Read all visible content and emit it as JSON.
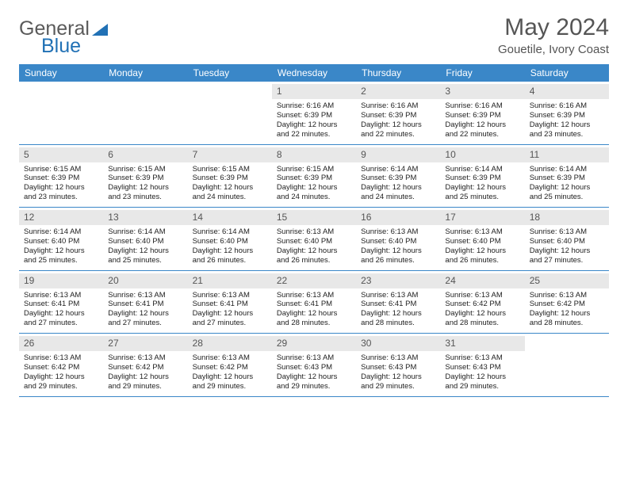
{
  "logo": {
    "text1": "General",
    "text2": "Blue"
  },
  "title": "May 2024",
  "location": "Gouetile, Ivory Coast",
  "colors": {
    "header_bg": "#3a87c8",
    "header_fg": "#ffffff",
    "daynum_bg": "#e8e8e8",
    "daynum_fg": "#555555",
    "rule": "#3a87c8",
    "text": "#222222",
    "logo_gray": "#5a5a5a",
    "logo_blue": "#2171b5"
  },
  "columns": [
    "Sunday",
    "Monday",
    "Tuesday",
    "Wednesday",
    "Thursday",
    "Friday",
    "Saturday"
  ],
  "weeks": [
    [
      {
        "n": "",
        "sr": "",
        "ss": "",
        "dl": ""
      },
      {
        "n": "",
        "sr": "",
        "ss": "",
        "dl": ""
      },
      {
        "n": "",
        "sr": "",
        "ss": "",
        "dl": ""
      },
      {
        "n": "1",
        "sr": "6:16 AM",
        "ss": "6:39 PM",
        "dl": "12 hours and 22 minutes."
      },
      {
        "n": "2",
        "sr": "6:16 AM",
        "ss": "6:39 PM",
        "dl": "12 hours and 22 minutes."
      },
      {
        "n": "3",
        "sr": "6:16 AM",
        "ss": "6:39 PM",
        "dl": "12 hours and 22 minutes."
      },
      {
        "n": "4",
        "sr": "6:16 AM",
        "ss": "6:39 PM",
        "dl": "12 hours and 23 minutes."
      }
    ],
    [
      {
        "n": "5",
        "sr": "6:15 AM",
        "ss": "6:39 PM",
        "dl": "12 hours and 23 minutes."
      },
      {
        "n": "6",
        "sr": "6:15 AM",
        "ss": "6:39 PM",
        "dl": "12 hours and 23 minutes."
      },
      {
        "n": "7",
        "sr": "6:15 AM",
        "ss": "6:39 PM",
        "dl": "12 hours and 24 minutes."
      },
      {
        "n": "8",
        "sr": "6:15 AM",
        "ss": "6:39 PM",
        "dl": "12 hours and 24 minutes."
      },
      {
        "n": "9",
        "sr": "6:14 AM",
        "ss": "6:39 PM",
        "dl": "12 hours and 24 minutes."
      },
      {
        "n": "10",
        "sr": "6:14 AM",
        "ss": "6:39 PM",
        "dl": "12 hours and 25 minutes."
      },
      {
        "n": "11",
        "sr": "6:14 AM",
        "ss": "6:39 PM",
        "dl": "12 hours and 25 minutes."
      }
    ],
    [
      {
        "n": "12",
        "sr": "6:14 AM",
        "ss": "6:40 PM",
        "dl": "12 hours and 25 minutes."
      },
      {
        "n": "13",
        "sr": "6:14 AM",
        "ss": "6:40 PM",
        "dl": "12 hours and 25 minutes."
      },
      {
        "n": "14",
        "sr": "6:14 AM",
        "ss": "6:40 PM",
        "dl": "12 hours and 26 minutes."
      },
      {
        "n": "15",
        "sr": "6:13 AM",
        "ss": "6:40 PM",
        "dl": "12 hours and 26 minutes."
      },
      {
        "n": "16",
        "sr": "6:13 AM",
        "ss": "6:40 PM",
        "dl": "12 hours and 26 minutes."
      },
      {
        "n": "17",
        "sr": "6:13 AM",
        "ss": "6:40 PM",
        "dl": "12 hours and 26 minutes."
      },
      {
        "n": "18",
        "sr": "6:13 AM",
        "ss": "6:40 PM",
        "dl": "12 hours and 27 minutes."
      }
    ],
    [
      {
        "n": "19",
        "sr": "6:13 AM",
        "ss": "6:41 PM",
        "dl": "12 hours and 27 minutes."
      },
      {
        "n": "20",
        "sr": "6:13 AM",
        "ss": "6:41 PM",
        "dl": "12 hours and 27 minutes."
      },
      {
        "n": "21",
        "sr": "6:13 AM",
        "ss": "6:41 PM",
        "dl": "12 hours and 27 minutes."
      },
      {
        "n": "22",
        "sr": "6:13 AM",
        "ss": "6:41 PM",
        "dl": "12 hours and 28 minutes."
      },
      {
        "n": "23",
        "sr": "6:13 AM",
        "ss": "6:41 PM",
        "dl": "12 hours and 28 minutes."
      },
      {
        "n": "24",
        "sr": "6:13 AM",
        "ss": "6:42 PM",
        "dl": "12 hours and 28 minutes."
      },
      {
        "n": "25",
        "sr": "6:13 AM",
        "ss": "6:42 PM",
        "dl": "12 hours and 28 minutes."
      }
    ],
    [
      {
        "n": "26",
        "sr": "6:13 AM",
        "ss": "6:42 PM",
        "dl": "12 hours and 29 minutes."
      },
      {
        "n": "27",
        "sr": "6:13 AM",
        "ss": "6:42 PM",
        "dl": "12 hours and 29 minutes."
      },
      {
        "n": "28",
        "sr": "6:13 AM",
        "ss": "6:42 PM",
        "dl": "12 hours and 29 minutes."
      },
      {
        "n": "29",
        "sr": "6:13 AM",
        "ss": "6:43 PM",
        "dl": "12 hours and 29 minutes."
      },
      {
        "n": "30",
        "sr": "6:13 AM",
        "ss": "6:43 PM",
        "dl": "12 hours and 29 minutes."
      },
      {
        "n": "31",
        "sr": "6:13 AM",
        "ss": "6:43 PM",
        "dl": "12 hours and 29 minutes."
      },
      {
        "n": "",
        "sr": "",
        "ss": "",
        "dl": ""
      }
    ]
  ],
  "labels": {
    "sunrise": "Sunrise:",
    "sunset": "Sunset:",
    "daylight": "Daylight:"
  }
}
